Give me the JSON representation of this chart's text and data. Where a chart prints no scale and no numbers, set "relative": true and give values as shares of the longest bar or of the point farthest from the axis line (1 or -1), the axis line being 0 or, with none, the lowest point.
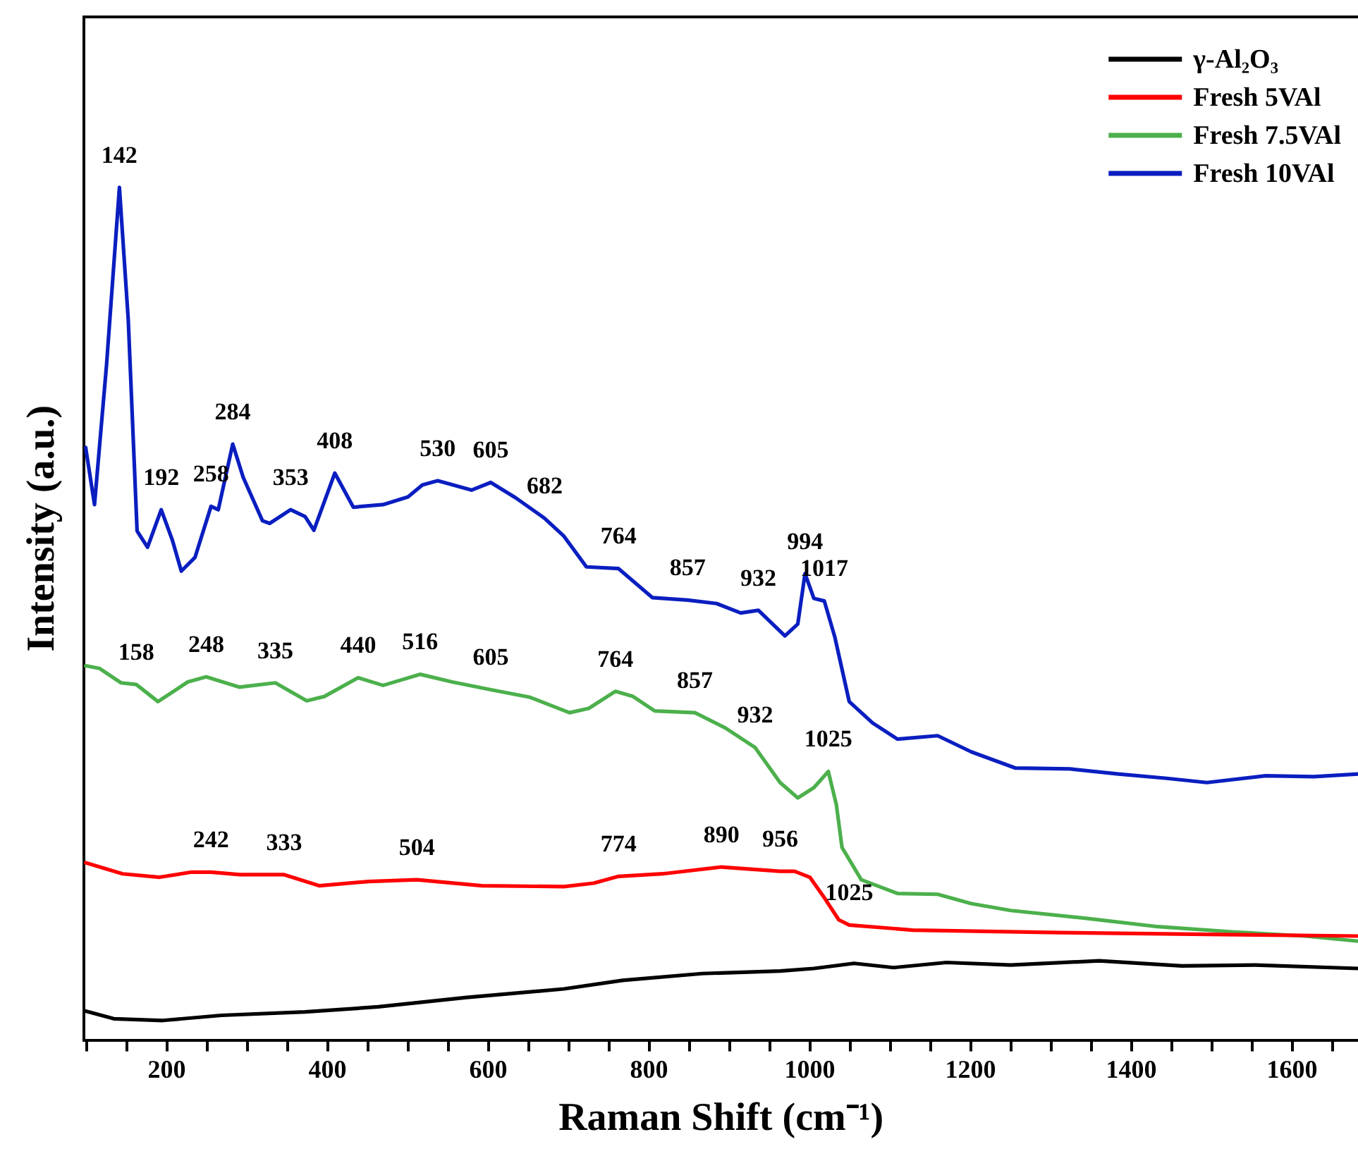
{
  "chart_data": {
    "type": "line",
    "xlabel": "Raman Shift (cm⁻¹)",
    "ylabel": "Intensity (a.u.)",
    "relative": true,
    "xlim": [
      97,
      1682
    ],
    "xticks": [
      {
        "value": 100,
        "label": null
      },
      {
        "value": 150,
        "label": null
      },
      200,
      {
        "value": 250,
        "label": null
      },
      {
        "value": 300,
        "label": null
      },
      {
        "value": 350,
        "label": null
      },
      400,
      {
        "value": 450,
        "label": null
      },
      {
        "value": 500,
        "label": null
      },
      {
        "value": 550,
        "label": null
      },
      600,
      {
        "value": 650,
        "label": null
      },
      {
        "value": 700,
        "label": null
      },
      {
        "value": 750,
        "label": null
      },
      800,
      {
        "value": 850,
        "label": null
      },
      {
        "value": 900,
        "label": null
      },
      {
        "value": 950,
        "label": null
      },
      1000,
      {
        "value": 1050,
        "label": null
      },
      {
        "value": 1100,
        "label": null
      },
      {
        "value": 1150,
        "label": null
      },
      1200,
      {
        "value": 1250,
        "label": null
      },
      {
        "value": 1300,
        "label": null
      },
      {
        "value": 1350,
        "label": null
      },
      1400,
      {
        "value": 1450,
        "label": null
      },
      {
        "value": 1500,
        "label": null
      },
      {
        "value": 1550,
        "label": null
      },
      1600,
      {
        "value": 1650,
        "label": null
      }
    ],
    "grid": false,
    "legend": "top right",
    "marker": "none",
    "line_style": "solid",
    "series": [
      {
        "name": "γ-Al₂O₃",
        "color": "#000000",
        "x": [
          99,
          134,
          195,
          268,
          372,
          463,
          573,
          694,
          767,
          866,
          963,
          1005,
          1055,
          1104,
          1170,
          1250,
          1360,
          1463,
          1554,
          1682
        ],
        "values": [
          0.034,
          0.025,
          0.023,
          0.029,
          0.033,
          0.039,
          0.05,
          0.06,
          0.07,
          0.078,
          0.081,
          0.084,
          0.09,
          0.085,
          0.091,
          0.088,
          0.093,
          0.087,
          0.088,
          0.084
        ]
      },
      {
        "name": "Fresh 5VAl",
        "color": "#ff0000",
        "x": [
          99,
          145,
          191,
          231,
          255,
          291,
          346,
          390,
          451,
          511,
          592,
          694,
          731,
          762,
          817,
          890,
          963,
          981,
          1000,
          1018,
          1036,
          1049,
          1128,
          1311,
          1494,
          1682
        ],
        "values": [
          0.208,
          0.195,
          0.191,
          0.197,
          0.197,
          0.194,
          0.194,
          0.181,
          0.186,
          0.188,
          0.181,
          0.18,
          0.184,
          0.192,
          0.195,
          0.203,
          0.198,
          0.198,
          0.191,
          0.167,
          0.141,
          0.135,
          0.129,
          0.126,
          0.124,
          0.122
        ]
      },
      {
        "name": "Fresh 7.5VAl",
        "color": "#4cb04c",
        "x": [
          99,
          116,
          143,
          162,
          189,
          226,
          249,
          290,
          335,
          374,
          396,
          438,
          469,
          515,
          555,
          603,
          652,
          701,
          725,
          758,
          780,
          807,
          857,
          895,
          932,
          963,
          985,
          1005,
          1023,
          1033,
          1040,
          1064,
          1109,
          1159,
          1201,
          1250,
          1342,
          1433,
          1525,
          1616,
          1682
        ],
        "values": [
          0.439,
          0.436,
          0.419,
          0.417,
          0.397,
          0.42,
          0.426,
          0.414,
          0.419,
          0.398,
          0.403,
          0.425,
          0.416,
          0.429,
          0.42,
          0.411,
          0.402,
          0.384,
          0.389,
          0.409,
          0.403,
          0.386,
          0.384,
          0.366,
          0.343,
          0.302,
          0.284,
          0.296,
          0.315,
          0.276,
          0.226,
          0.188,
          0.172,
          0.171,
          0.16,
          0.152,
          0.143,
          0.133,
          0.127,
          0.122,
          0.116
        ]
      },
      {
        "name": "Fresh 10VAl",
        "color": "#0a1ec0",
        "x": [
          99,
          110,
          125,
          141,
          152,
          163,
          176,
          193,
          207,
          218,
          235,
          255,
          264,
          282,
          295,
          319,
          328,
          354,
          372,
          383,
          409,
          432,
          469,
          500,
          518,
          537,
          579,
          603,
          634,
          670,
          694,
          722,
          762,
          804,
          848,
          884,
          914,
          936,
          969,
          985,
          994,
          1005,
          1018,
          1031,
          1049,
          1078,
          1109,
          1159,
          1201,
          1256,
          1324,
          1384,
          1444,
          1494,
          1567,
          1627,
          1682
        ],
        "values": [
          0.695,
          0.628,
          0.792,
          1,
          0.845,
          0.597,
          0.578,
          0.622,
          0.586,
          0.55,
          0.566,
          0.626,
          0.622,
          0.699,
          0.66,
          0.609,
          0.606,
          0.622,
          0.614,
          0.598,
          0.665,
          0.625,
          0.628,
          0.637,
          0.651,
          0.656,
          0.645,
          0.654,
          0.636,
          0.612,
          0.591,
          0.555,
          0.553,
          0.519,
          0.516,
          0.512,
          0.501,
          0.504,
          0.474,
          0.488,
          0.547,
          0.518,
          0.515,
          0.473,
          0.397,
          0.372,
          0.353,
          0.357,
          0.338,
          0.319,
          0.318,
          0.312,
          0.307,
          0.302,
          0.31,
          0.309,
          0.312
        ]
      }
    ],
    "annotations": [
      {
        "text": "142",
        "x": 141,
        "y": 1
      },
      {
        "text": "192",
        "x": 193,
        "y": 0.622
      },
      {
        "text": "258",
        "x": 255,
        "y": 0.626
      },
      {
        "text": "284",
        "x": 282,
        "y": 0.699
      },
      {
        "text": "353",
        "x": 354,
        "y": 0.622
      },
      {
        "text": "408",
        "x": 409,
        "y": 0.665
      },
      {
        "text": "530",
        "x": 537,
        "y": 0.656
      },
      {
        "text": "605",
        "x": 603,
        "y": 0.654
      },
      {
        "text": "682",
        "x": 670,
        "y": 0.612
      },
      {
        "text": "764",
        "x": 762,
        "y": 0.553
      },
      {
        "text": "857",
        "x": 848,
        "y": 0.516
      },
      {
        "text": "932",
        "x": 936,
        "y": 0.504
      },
      {
        "text": "994",
        "x": 994,
        "y": 0.547
      },
      {
        "text": "1017",
        "x": 1018,
        "y": 0.515
      },
      {
        "text": "158",
        "x": 162,
        "y": 0.417
      },
      {
        "text": "248",
        "x": 249,
        "y": 0.426
      },
      {
        "text": "335",
        "x": 335,
        "y": 0.419
      },
      {
        "text": "440",
        "x": 438,
        "y": 0.425
      },
      {
        "text": "516",
        "x": 515,
        "y": 0.429
      },
      {
        "text": "605",
        "x": 603,
        "y": 0.411
      },
      {
        "text": "764",
        "x": 758,
        "y": 0.409
      },
      {
        "text": "857",
        "x": 857,
        "y": 0.384
      },
      {
        "text": "932",
        "x": 932,
        "y": 0.343
      },
      {
        "text": "1025",
        "x": 1023,
        "y": 0.315
      },
      {
        "text": "242",
        "x": 255,
        "y": 0.197
      },
      {
        "text": "333",
        "x": 346,
        "y": 0.194
      },
      {
        "text": "504",
        "x": 511,
        "y": 0.188
      },
      {
        "text": "774",
        "x": 762,
        "y": 0.192
      },
      {
        "text": "890",
        "x": 890,
        "y": 0.203
      },
      {
        "text": "956",
        "x": 963,
        "y": 0.198
      },
      {
        "text": "1025",
        "x": 1049,
        "y": 0.135
      }
    ]
  }
}
